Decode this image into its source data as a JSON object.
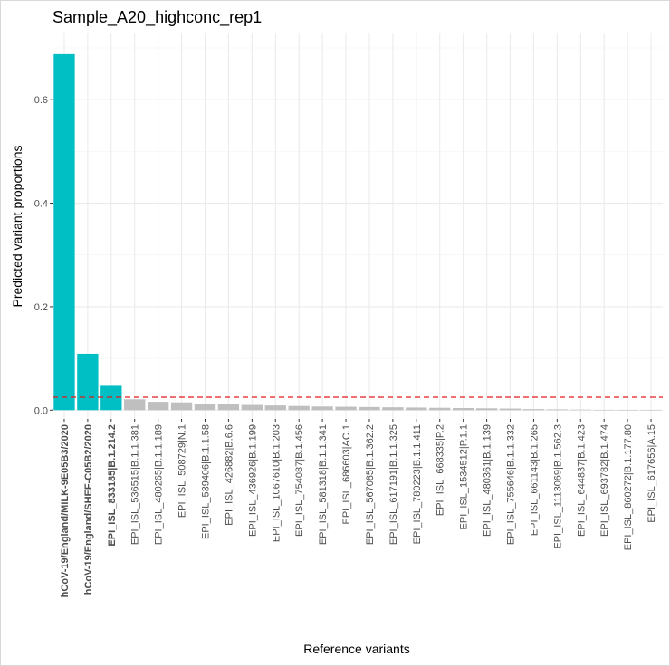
{
  "chart_data": {
    "type": "bar",
    "title": "Sample_A20_highconc_rep1",
    "xlabel": "Reference variants",
    "ylabel": "Predicted variant proportions",
    "ylim": [
      -0.017,
      0.728
    ],
    "yticks": [
      0.0,
      0.2,
      0.4,
      0.6
    ],
    "ytick_labels": [
      "0.0",
      "0.2",
      "0.4",
      "0.6"
    ],
    "grid": true,
    "threshold": 0.025,
    "colors": {
      "highlight": "#00BFC4",
      "other": "#BFBFBF",
      "threshold_line": "#E41A1C",
      "grid": "#EBEBEB"
    },
    "categories": [
      "hCoV-19/England/MILK-9E05B3/2020",
      "hCoV-19/England/SHEF-C05B2/2020",
      "EPI_ISL_833185|B.1.214.2",
      "EPI_ISL_536515|B.1.1.381",
      "EPI_ISL_480265|B.1.1.189",
      "EPI_ISL_508729|N.1",
      "EPI_ISL_539406|B.1.1.58",
      "EPI_ISL_426882|B.6.6",
      "EPI_ISL_436926|B.1.199",
      "EPI_ISL_1067610|B.1.203",
      "EPI_ISL_754087|B.1.456",
      "EPI_ISL_581318|B.1.1.341",
      "EPI_ISL_686603|AC.1",
      "EPI_ISL_567085|B.1.362.2",
      "EPI_ISL_617191|B.1.1.325",
      "EPI_ISL_780223|B.1.1.411",
      "EPI_ISL_668335|P.2",
      "EPI_ISL_1534512|P.1.1",
      "EPI_ISL_480361|B.1.139",
      "EPI_ISL_755646|B.1.1.332",
      "EPI_ISL_661143|B.1.265",
      "EPI_ISL_1113069|B.1.562.3",
      "EPI_ISL_644837|B.1.423",
      "EPI_ISL_693782|B.1.474",
      "EPI_ISL_860272|B.1.177.80",
      "EPI_ISL_617656|A.15"
    ],
    "values": [
      0.688,
      0.109,
      0.047,
      0.021,
      0.016,
      0.015,
      0.012,
      0.011,
      0.01,
      0.009,
      0.008,
      0.007,
      0.0065,
      0.006,
      0.0055,
      0.005,
      0.0045,
      0.004,
      0.0035,
      0.003,
      0.002,
      0.0015,
      0.001,
      0.0005,
      0.0003,
      0.0002
    ],
    "highlighted": [
      true,
      true,
      true,
      false,
      false,
      false,
      false,
      false,
      false,
      false,
      false,
      false,
      false,
      false,
      false,
      false,
      false,
      false,
      false,
      false,
      false,
      false,
      false,
      false,
      false,
      false
    ]
  }
}
